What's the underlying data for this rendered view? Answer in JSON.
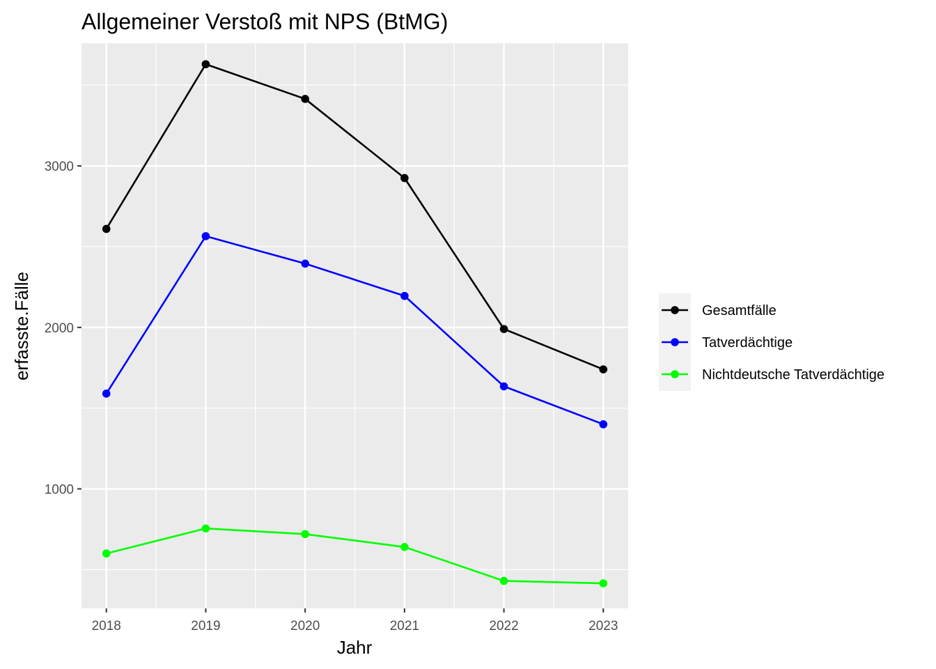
{
  "chart_data": {
    "type": "line",
    "title": "Allgemeiner Verstoß mit NPS (BtMG)",
    "xlabel": "Jahr",
    "ylabel": "erfasste.Fälle",
    "x": [
      "2018",
      "2019",
      "2020",
      "2021",
      "2022",
      "2023"
    ],
    "ylim": [
      260,
      3760
    ],
    "yticks": [
      1000,
      2000,
      3000
    ],
    "grid": true,
    "legend_position": "right",
    "series": [
      {
        "name": "Gesamtfälle",
        "color": "#000000",
        "values": [
          2610,
          3630,
          3415,
          2925,
          1990,
          1740
        ]
      },
      {
        "name": "Tatverdächtige",
        "color": "#0000ff",
        "values": [
          1590,
          2565,
          2395,
          2195,
          1635,
          1400
        ]
      },
      {
        "name": "Nichtdeutsche Tatverdächtige",
        "color": "#00ff00",
        "values": [
          600,
          755,
          720,
          640,
          430,
          415
        ]
      }
    ]
  }
}
